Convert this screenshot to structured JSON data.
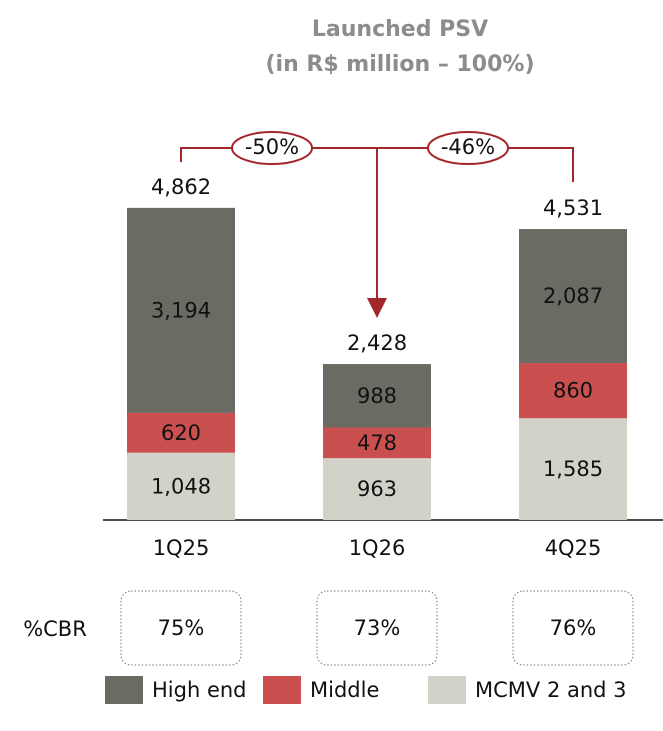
{
  "chart_data": {
    "type": "stacked_bar",
    "title": [
      "Launched PSV",
      "(in R$ million – 100%)"
    ],
    "categories": [
      "1Q25",
      "1Q26",
      "4Q25"
    ],
    "series": [
      {
        "name": "MCMV 2 and 3",
        "color": "#d3d2c9",
        "values": [
          1048,
          963,
          1585
        ],
        "value_labels": [
          "1,048",
          "963",
          "1,585"
        ]
      },
      {
        "name": "Middle",
        "color": "#c9504f",
        "values": [
          620,
          478,
          860
        ],
        "value_labels": [
          "620",
          "478",
          "860"
        ]
      },
      {
        "name": "High end",
        "color": "#6b6b63",
        "values": [
          3194,
          988,
          2087
        ],
        "value_labels": [
          "3,194",
          "988",
          "2,087"
        ]
      }
    ],
    "total_labels": [
      "4,862",
      "2,428",
      "4,531"
    ],
    "annotations": [
      "-50%",
      "-46%"
    ],
    "cbr": {
      "label": "%CBR",
      "values": [
        75,
        73,
        76
      ],
      "value_labels": [
        "75%",
        "73%",
        "76%"
      ]
    },
    "ylim": [
      0,
      5000
    ],
    "legend": "bottom"
  }
}
